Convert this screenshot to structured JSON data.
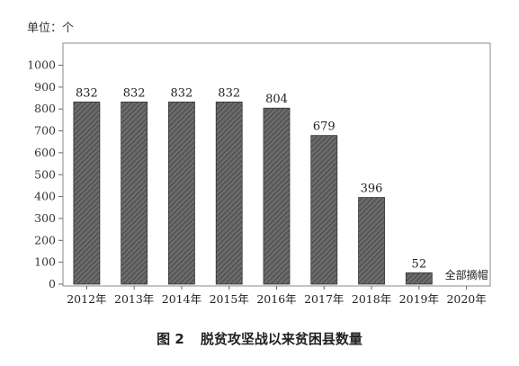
{
  "unit_label": "单位：个",
  "caption": {
    "number": "图 2",
    "title": "脱贫攻坚战以来贫困县数量"
  },
  "chart_data": {
    "type": "bar",
    "title": "",
    "xlabel": "",
    "ylabel": "单位：个",
    "categories": [
      "2012年",
      "2013年",
      "2014年",
      "2015年",
      "2016年",
      "2017年",
      "2018年",
      "2019年",
      "2020年"
    ],
    "values": [
      832,
      832,
      832,
      832,
      804,
      679,
      396,
      52,
      null
    ],
    "data_labels": [
      "832",
      "832",
      "832",
      "832",
      "804",
      "679",
      "396",
      "52",
      ""
    ],
    "yticks": [
      0,
      100,
      200,
      300,
      400,
      500,
      600,
      700,
      800,
      900,
      1000
    ],
    "ylim": [
      0,
      1050
    ],
    "annotations": [
      {
        "category": "2020年",
        "text": "全部摘帽"
      }
    ],
    "bar_fill": "hatched dark gray",
    "grid": false,
    "legend": "none"
  }
}
